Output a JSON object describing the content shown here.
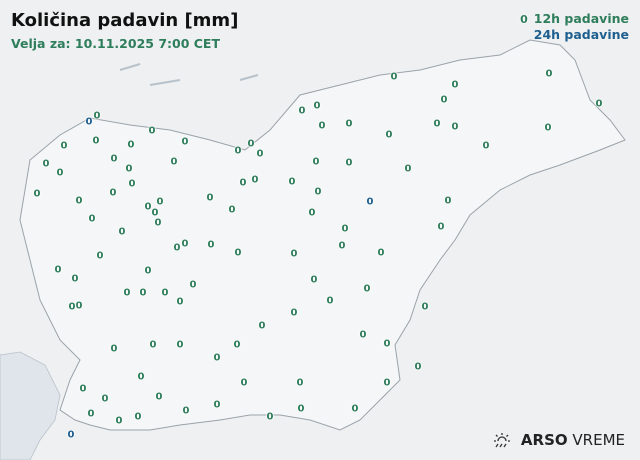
{
  "header": {
    "title": "Količina padavin [mm]",
    "valid_for": "Velja za: 10.11.2025 7:00 CET"
  },
  "legend": {
    "sample_value": "0",
    "item_12h": "12h padavine",
    "item_24h": "24h padavine"
  },
  "colors": {
    "period_12h": "#2e7d5b",
    "period_24h": "#1f5f8f",
    "border": "#9aa3ab",
    "sea": "#dfe5ea"
  },
  "logo": {
    "brand": "ARSO",
    "product": "VREME",
    "icon": "sun-rain-icon"
  },
  "stations": {
    "period_24h_values": [
      "0",
      "0",
      "0"
    ],
    "period_12h_values": [
      "0",
      "0",
      "0",
      "0",
      "0",
      "0",
      "0",
      "0",
      "0",
      "0",
      "0",
      "0",
      "0",
      "0",
      "0",
      "0",
      "0",
      "0",
      "0",
      "0",
      "0",
      "0",
      "0",
      "0",
      "0",
      "0",
      "0",
      "0",
      "0",
      "0",
      "0",
      "0",
      "0",
      "0",
      "0",
      "0",
      "0",
      "0",
      "0",
      "0",
      "0",
      "0",
      "0",
      "0",
      "0",
      "0",
      "0",
      "0",
      "0",
      "0",
      "0",
      "0",
      "0",
      "0",
      "0",
      "0",
      "0",
      "0",
      "0",
      "0",
      "0",
      "0",
      "0",
      "0",
      "0",
      "0",
      "0",
      "0",
      "0",
      "0",
      "0",
      "0",
      "0",
      "0",
      "0",
      "0",
      "0",
      "0",
      "0",
      "0",
      "0",
      "0",
      "0",
      "0",
      "0",
      "0",
      "0",
      "0",
      "0",
      "0",
      "0",
      "0",
      "0",
      "0",
      "0",
      "0",
      "0",
      "0",
      "0"
    ]
  }
}
